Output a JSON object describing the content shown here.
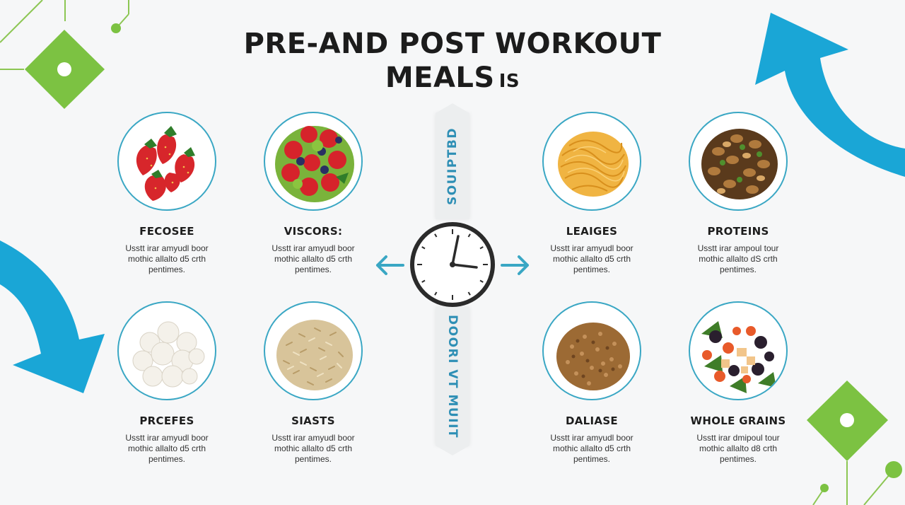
{
  "title": {
    "line1": "PRE-AND POST WORKOUT",
    "line2": "MEALS",
    "suffix": "IS"
  },
  "center": {
    "top_label": "SOUIPTBD",
    "bottom_label": "DOORI VT MUIIT"
  },
  "items": [
    {
      "name": "FECOSEE",
      "desc": "Usstt irar amyudl boor mothic allalto d5 crth pentimes.",
      "food": "strawberries-icon"
    },
    {
      "name": "VISCORS:",
      "desc": "Usstt irar amyudl boor mothic allalto d5 crth pentimes.",
      "food": "berry-bowl-icon"
    },
    {
      "name": "LEAIGES",
      "desc": "Usstt irar amyudl boor mothic allalto d5 crth pentimes.",
      "food": "noodles-icon"
    },
    {
      "name": "PROTEINS",
      "desc": "Usstt irar ampoul tour mothic allalto dS crth pentimes.",
      "food": "nuts-icon"
    },
    {
      "name": "PRCEFES",
      "desc": "Usstt irar amyudl boor mothic allalto d5 crth pentimes.",
      "food": "popcorn-icon"
    },
    {
      "name": "SIASTS",
      "desc": "Usstt irar amyudl boor mothic allalto d5 crth pentimes.",
      "food": "rice-icon"
    },
    {
      "name": "DALIASE",
      "desc": "Usstt irar amyudl boor mothic allalto d5 crth pentimes.",
      "food": "grains-icon"
    },
    {
      "name": "WHOLE GRAINS",
      "desc": "Usstt irar dmipoul tour mothic allalto d8 crth pentimes.",
      "food": "fruit-salad-icon"
    }
  ],
  "colors": {
    "accent_blue": "#1aa6d6",
    "accent_green": "#7cc242",
    "circle_border": "#3aa7c4",
    "bar_text": "#2e8fb5"
  }
}
